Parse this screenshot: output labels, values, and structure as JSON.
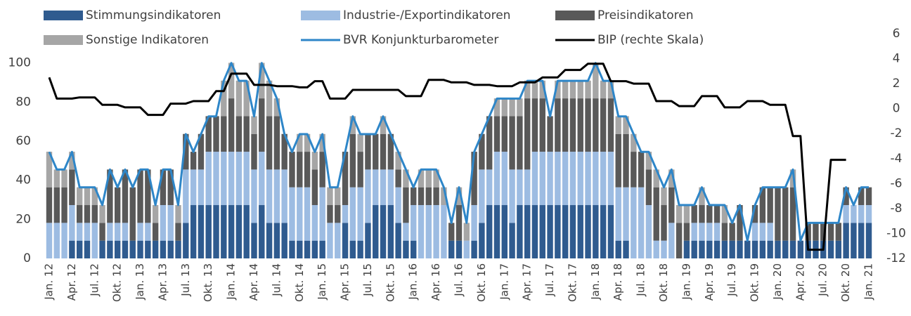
{
  "chart_data": {
    "type": "bar",
    "stacked": true,
    "categories": [
      "Jan. 12",
      null,
      null,
      "Apr. 12",
      null,
      null,
      "Jul. 12",
      null,
      null,
      "Okt. 12",
      null,
      null,
      "Jan. 13",
      null,
      null,
      "Apr. 13",
      null,
      null,
      "Jul. 13",
      null,
      null,
      "Okt. 13",
      null,
      null,
      "Jan. 14",
      null,
      null,
      "Apr. 14",
      null,
      null,
      "Jul. 14",
      null,
      null,
      "Okt. 14",
      null,
      null,
      "Jan. 15",
      null,
      null,
      "Apr. 15",
      null,
      null,
      "Jul. 15",
      null,
      null,
      "Okt. 15",
      null,
      null,
      "Jan. 16",
      null,
      null,
      "Apr. 16",
      null,
      null,
      "Jul. 16",
      null,
      null,
      "Okt. 16",
      null,
      null,
      "Jan. 17",
      null,
      null,
      "Apr. 17",
      null,
      null,
      "Jul. 17",
      null,
      null,
      "Okt. 17",
      null,
      null,
      "Jan. 18",
      null,
      null,
      "Apr. 18",
      null,
      null,
      "Jul. 18",
      null,
      null,
      "Okt. 18",
      null,
      null,
      "Jan. 19",
      null,
      null,
      "Apr. 19",
      null,
      null,
      "Jul. 19",
      null,
      null,
      "Okt. 19",
      null,
      null,
      "Jan. 20",
      null,
      null,
      "Apr. 20",
      null,
      null,
      "Jul. 20",
      null,
      null,
      "Okt. 20",
      null,
      null,
      "Jan. 21"
    ],
    "series": [
      {
        "name": "Stimmungsindikatoren",
        "color": "#2f5b8f",
        "type": "bar",
        "values": [
          0,
          0,
          0,
          9.1,
          9.1,
          9.1,
          0,
          9.1,
          9.1,
          9.1,
          9.1,
          9.1,
          9.1,
          9.1,
          9.1,
          9.1,
          9.1,
          9.1,
          18.2,
          27.3,
          27.3,
          27.3,
          27.3,
          27.3,
          27.3,
          27.3,
          27.3,
          18.2,
          27.3,
          18.2,
          18.2,
          18.2,
          9.1,
          9.1,
          9.1,
          9.1,
          9.1,
          0,
          0,
          18.2,
          9.1,
          9.1,
          18.2,
          27.3,
          27.3,
          27.3,
          18.2,
          9.1,
          9.1,
          0,
          0,
          0,
          0,
          9.1,
          9.1,
          0,
          9.1,
          18.2,
          27.3,
          27.3,
          27.3,
          18.2,
          27.3,
          27.3,
          27.3,
          27.3,
          27.3,
          27.3,
          27.3,
          27.3,
          27.3,
          27.3,
          27.3,
          27.3,
          27.3,
          9.1,
          9.1,
          0,
          0,
          0,
          0,
          0,
          0,
          0,
          9.1,
          9.1,
          9.1,
          9.1,
          9.1,
          9.1,
          9.1,
          9.1,
          9.1,
          9.1,
          9.1,
          9.1,
          9.1,
          9.1,
          9.1,
          9.1,
          9.1,
          9.1,
          9.1,
          9.1,
          9.1,
          18.2,
          18.2,
          18.2,
          18.2
        ]
      },
      {
        "name": "Industrie-/Exportindikatoren",
        "color": "#9dbce2",
        "type": "bar",
        "values": [
          18.2,
          18.2,
          18.2,
          18.2,
          9.1,
          9.1,
          18.2,
          0,
          9.1,
          9.1,
          9.1,
          0,
          9.1,
          9.1,
          0,
          18.2,
          18.2,
          0,
          27.3,
          18.2,
          18.2,
          27.3,
          27.3,
          27.3,
          27.3,
          27.3,
          27.3,
          27.3,
          27.3,
          27.3,
          27.3,
          27.3,
          27.3,
          27.3,
          27.3,
          18.2,
          27.3,
          18.2,
          18.2,
          9.1,
          27.3,
          27.3,
          27.3,
          18.2,
          18.2,
          18.2,
          18.2,
          9.1,
          18.2,
          27.3,
          27.3,
          27.3,
          27.3,
          0,
          0,
          9.1,
          18.2,
          27.3,
          18.2,
          27.3,
          27.3,
          27.3,
          18.2,
          18.2,
          27.3,
          27.3,
          27.3,
          27.3,
          27.3,
          27.3,
          27.3,
          27.3,
          27.3,
          27.3,
          27.3,
          27.3,
          27.3,
          36.4,
          36.4,
          27.3,
          9.1,
          9.1,
          18.2,
          0,
          0,
          9.1,
          9.1,
          9.1,
          9.1,
          0,
          0,
          0,
          0,
          9.1,
          9.1,
          9.1,
          0,
          0,
          0,
          0,
          0,
          0,
          0,
          0,
          0,
          9.1,
          9.1,
          9.1,
          9.1
        ]
      },
      {
        "name": "Preisindikatoren",
        "color": "#595959",
        "type": "bar",
        "values": [
          18.2,
          18.2,
          18.2,
          18.2,
          9.1,
          9.1,
          9.1,
          9.1,
          27.3,
          18.2,
          27.3,
          27.3,
          27.3,
          27.3,
          9.1,
          18.2,
          18.2,
          9.1,
          18.2,
          9.1,
          18.2,
          18.2,
          18.2,
          18.2,
          27.3,
          18.2,
          18.2,
          18.2,
          27.3,
          27.3,
          27.3,
          18.2,
          18.2,
          18.2,
          18.2,
          18.2,
          18.2,
          9.1,
          9.1,
          27.3,
          27.3,
          18.2,
          18.2,
          18.2,
          18.2,
          18.2,
          9.1,
          18.2,
          9.1,
          9.1,
          9.1,
          9.1,
          0,
          9.1,
          18.2,
          0,
          27.3,
          18.2,
          27.3,
          18.2,
          18.2,
          27.3,
          27.3,
          36.4,
          27.3,
          27.3,
          18.2,
          27.3,
          27.3,
          27.3,
          27.3,
          27.3,
          27.3,
          27.3,
          27.3,
          27.3,
          27.3,
          18.2,
          18.2,
          18.2,
          27.3,
          18.2,
          18.2,
          18.2,
          9.1,
          9.1,
          9.1,
          9.1,
          9.1,
          9.1,
          9.1,
          18.2,
          0,
          9.1,
          18.2,
          18.2,
          27.3,
          27.3,
          27.3,
          0,
          9.1,
          9.1,
          9.1,
          9.1,
          9.1,
          9.1,
          0,
          9.1,
          9.1
        ]
      },
      {
        "name": "Sonstige Indikatoren",
        "color": "#a6a6a6",
        "type": "bar",
        "values": [
          18.2,
          9.1,
          9.1,
          9.1,
          9.1,
          9.1,
          9.1,
          9.1,
          0,
          0,
          0,
          0,
          0,
          0,
          9.1,
          0,
          0,
          9.1,
          0,
          0,
          0,
          0,
          0,
          18.2,
          18.2,
          18.2,
          18.2,
          9.1,
          18.2,
          18.2,
          9.1,
          0,
          0,
          9.1,
          9.1,
          9.1,
          9.1,
          9.1,
          9.1,
          0,
          9.1,
          9.1,
          0,
          0,
          9.1,
          0,
          9.1,
          9.1,
          0,
          9.1,
          9.1,
          9.1,
          9.1,
          0,
          9.1,
          9.1,
          0,
          0,
          0,
          9.1,
          9.1,
          9.1,
          9.1,
          9.1,
          9.1,
          9.1,
          0,
          9.1,
          9.1,
          9.1,
          9.1,
          9.1,
          18.2,
          9.1,
          9.1,
          9.1,
          9.1,
          9.1,
          0,
          9.1,
          9.1,
          9.1,
          9.1,
          9.1,
          9.1,
          0,
          9.1,
          0,
          0,
          9.1,
          0,
          0,
          0,
          0,
          0,
          0,
          0,
          0,
          9.1,
          0,
          0,
          0,
          0,
          0,
          0,
          0,
          0,
          0,
          0
        ]
      },
      {
        "name": "BVR Konjunkturbarometer",
        "color": "#2e86c8",
        "type": "line",
        "values": [
          54.5,
          45.5,
          45.5,
          54.5,
          36.4,
          36.4,
          36.4,
          27.3,
          45.5,
          36.4,
          45.5,
          36.4,
          45.5,
          45.5,
          27.3,
          45.5,
          45.5,
          27.3,
          63.6,
          54.5,
          63.6,
          72.7,
          72.7,
          90.9,
          100,
          90.9,
          90.9,
          72.7,
          100,
          90.9,
          81.8,
          63.6,
          54.5,
          63.6,
          63.6,
          54.5,
          63.6,
          36.4,
          36.4,
          54.5,
          72.7,
          63.6,
          63.6,
          63.6,
          72.7,
          63.6,
          54.5,
          45.5,
          36.4,
          45.5,
          45.5,
          45.5,
          36.4,
          18.2,
          36.4,
          18.2,
          54.5,
          63.6,
          72.7,
          81.8,
          81.8,
          81.8,
          81.8,
          90.9,
          90.9,
          90.9,
          72.7,
          90.9,
          90.9,
          90.9,
          90.9,
          90.9,
          100,
          90.9,
          90.9,
          72.7,
          72.7,
          63.6,
          54.5,
          54.5,
          45.5,
          36.4,
          45.5,
          27.3,
          27.3,
          27.3,
          36.4,
          27.3,
          27.3,
          27.3,
          18.2,
          27.3,
          9.1,
          27.3,
          36.4,
          36.4,
          36.4,
          36.4,
          45.5,
          9.1,
          18.2,
          18.2,
          18.2,
          18.2,
          18.2,
          36.4,
          27.3,
          36.4,
          36.4
        ]
      },
      {
        "name": "BIP (rechte Skala)",
        "color": "#000000",
        "type": "line",
        "axis": "y2",
        "values": [
          2.5,
          0.8,
          0.8,
          0.8,
          0.9,
          0.9,
          0.9,
          0.3,
          0.3,
          0.3,
          0.1,
          0.1,
          0.1,
          -0.5,
          -0.5,
          -0.5,
          0.4,
          0.4,
          0.4,
          0.6,
          0.6,
          0.6,
          1.4,
          1.4,
          2.8,
          2.8,
          2.8,
          1.9,
          1.9,
          1.9,
          1.8,
          1.8,
          1.8,
          1.7,
          1.7,
          2.2,
          2.2,
          0.8,
          0.8,
          0.8,
          1.5,
          1.5,
          1.5,
          1.5,
          1.5,
          1.5,
          1.5,
          1.0,
          1.0,
          1.0,
          2.3,
          2.3,
          2.3,
          2.1,
          2.1,
          2.1,
          1.9,
          1.9,
          1.9,
          1.8,
          1.8,
          1.8,
          2.1,
          2.1,
          2.1,
          2.5,
          2.5,
          2.5,
          3.1,
          3.1,
          3.1,
          3.6,
          3.6,
          3.6,
          2.2,
          2.2,
          2.2,
          2.0,
          2.0,
          2.0,
          0.6,
          0.6,
          0.6,
          0.2,
          0.2,
          0.2,
          1.0,
          1.0,
          1.0,
          0.1,
          0.1,
          0.1,
          0.6,
          0.6,
          0.6,
          0.3,
          0.3,
          0.3,
          -2.2,
          -2.2,
          -11.3,
          -11.3,
          -11.3,
          -4.1,
          -4.1,
          -4.1,
          null,
          null,
          null
        ]
      }
    ],
    "ylim": [
      0,
      115
    ],
    "yticks": [
      0,
      20,
      40,
      60,
      80,
      100
    ],
    "y2lim": [
      -12,
      6
    ],
    "y2ticks": [
      -12,
      -10,
      -8,
      -6,
      -4,
      -2,
      0,
      2,
      4,
      6
    ],
    "grid": false,
    "legend": "top"
  }
}
